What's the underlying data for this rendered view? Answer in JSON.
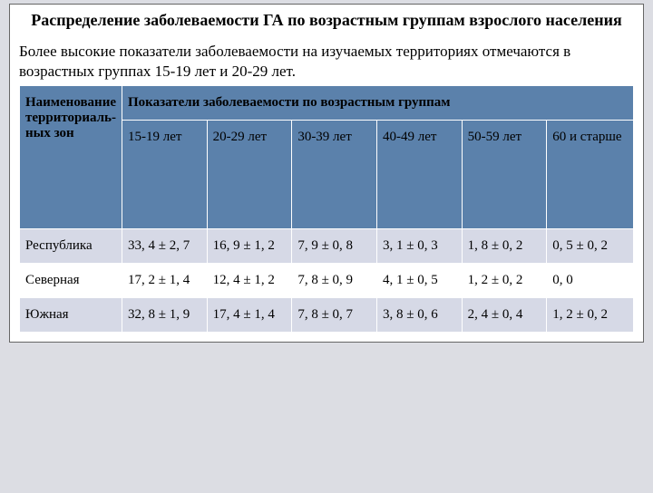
{
  "title": "Распределение заболеваемости ГА по возрастным группам взрослого населения",
  "subtitle": "Более высокие показатели заболеваемости на изучаемых территориях отмечаются в возрастных группах 15-19 лет и 20-29 лет.",
  "table": {
    "corner_header": "Наименование территориаль-ных зон",
    "group_header": "Показатели заболеваемости по возрастным группам",
    "columns": [
      "15-19 лет",
      "20-29 лет",
      "30-39 лет",
      "40-49 лет",
      "50-59 лет",
      "60 и старше"
    ],
    "rows": [
      {
        "label": "Республика",
        "cells": [
          "33, 4 ± 2, 7",
          "16, 9 ± 1, 2",
          "7, 9 ± 0, 8",
          "3, 1 ± 0, 3",
          "1, 8 ± 0, 2",
          "0, 5 ± 0, 2"
        ]
      },
      {
        "label": "Северная",
        "cells": [
          "17, 2 ± 1, 4",
          "12, 4 ± 1, 2",
          "7, 8 ± 0, 9",
          "4, 1 ± 0, 5",
          "1, 2 ± 0, 2",
          "0, 0"
        ]
      },
      {
        "label": "Южная",
        "cells": [
          "32, 8 ± 1, 9",
          "17, 4 ± 1, 4",
          "7, 8 ± 0, 7",
          "3, 8 ± 0, 6",
          "2, 4 ± 0, 4",
          "1, 2 ± 0, 2"
        ]
      }
    ]
  }
}
